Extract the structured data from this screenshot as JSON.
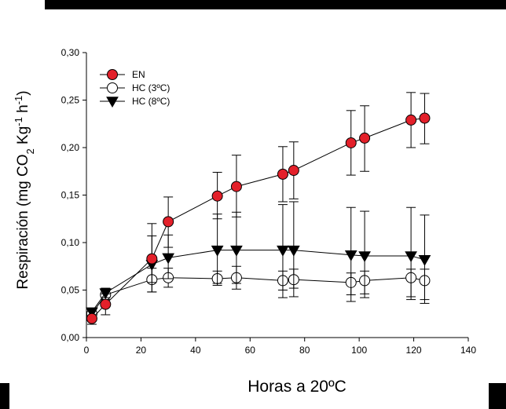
{
  "chart_data": {
    "type": "scatter",
    "xlabel": "Horas a 20ºC",
    "ylabel_parts": [
      "Respiración (mg CO",
      "2",
      " Kg",
      "-1",
      " h",
      "-1",
      ")"
    ],
    "xlim": [
      0,
      140
    ],
    "ylim": [
      0,
      0.3
    ],
    "x_ticks": [
      0,
      20,
      40,
      60,
      80,
      100,
      120,
      140
    ],
    "x_tick_labels": [
      "0",
      "20",
      "40",
      "60",
      "80",
      "100",
      "120",
      "140"
    ],
    "y_ticks": [
      0,
      0.05,
      0.1,
      0.15,
      0.2,
      0.25,
      0.3
    ],
    "y_tick_labels": [
      "0,00",
      "0,05",
      "0,10",
      "0,15",
      "0,20",
      "0,25",
      "0,30"
    ],
    "grid": false,
    "legend": "top-left",
    "series": [
      {
        "name": "EN",
        "marker": "circle-filled",
        "color": "#e3202a",
        "x": [
          2,
          7,
          24,
          30,
          48,
          55,
          72,
          76,
          97,
          102,
          119,
          124
        ],
        "y": [
          0.02,
          0.035,
          0.083,
          0.122,
          0.149,
          0.159,
          0.172,
          0.176,
          0.205,
          0.21,
          0.229,
          0.231
        ],
        "err_upper": [
          0.028,
          0.046,
          0.12,
          0.148,
          0.174,
          0.192,
          0.201,
          0.206,
          0.239,
          0.244,
          0.258,
          0.257
        ],
        "err_lower": [
          0.014,
          0.024,
          0.048,
          0.095,
          0.125,
          0.127,
          0.143,
          0.146,
          0.171,
          0.175,
          0.2,
          0.204
        ]
      },
      {
        "name": "HC (3ºC)",
        "marker": "circle-open",
        "color": "#ffffff",
        "x": [
          2,
          7,
          24,
          30,
          48,
          55,
          72,
          76,
          97,
          102,
          119,
          124
        ],
        "y": [
          0.025,
          0.045,
          0.061,
          0.063,
          0.062,
          0.063,
          0.06,
          0.061,
          0.058,
          0.06,
          0.063,
          0.06
        ],
        "err_upper": [
          0.03,
          0.05,
          0.073,
          0.073,
          0.07,
          0.075,
          0.07,
          0.072,
          0.068,
          0.07,
          0.072,
          0.072
        ],
        "err_lower": [
          0.02,
          0.04,
          0.048,
          0.053,
          0.055,
          0.051,
          0.042,
          0.043,
          0.038,
          0.046,
          0.043,
          0.036
        ]
      },
      {
        "name": "HC (8ºC)",
        "marker": "triangle-down",
        "color": "#000000",
        "x": [
          2,
          7,
          24,
          30,
          48,
          55,
          72,
          76,
          97,
          102,
          119,
          124
        ],
        "y": [
          0.027,
          0.047,
          0.077,
          0.084,
          0.092,
          0.092,
          0.092,
          0.092,
          0.087,
          0.086,
          0.086,
          0.082
        ],
        "err_upper": [
          0.031,
          0.052,
          0.107,
          0.108,
          0.13,
          0.132,
          0.14,
          0.143,
          0.137,
          0.133,
          0.137,
          0.129
        ],
        "err_lower": [
          0.022,
          0.042,
          0.058,
          0.062,
          0.057,
          0.057,
          0.05,
          0.052,
          0.045,
          0.042,
          0.04,
          0.04
        ]
      }
    ]
  }
}
